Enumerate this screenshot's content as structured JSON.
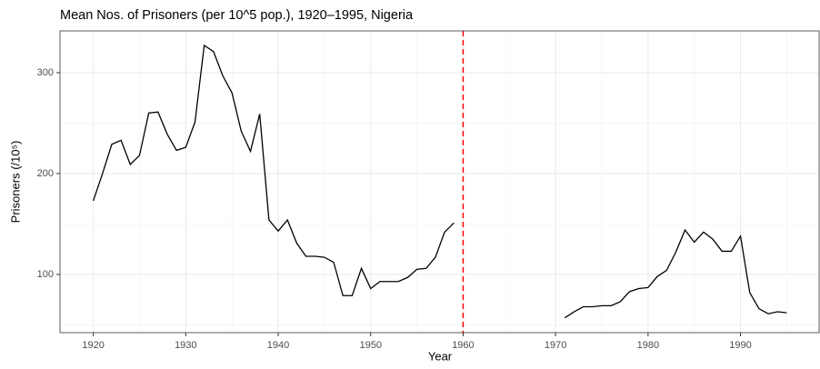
{
  "chart_data": {
    "type": "line",
    "title": "Mean Nos. of Prisoners (per 10^5 pop.), 1920–1995, Nigeria",
    "x_label": "Year",
    "y_label": "Prisoners (/10⁵)",
    "x": [
      1920,
      1921,
      1922,
      1923,
      1924,
      1925,
      1926,
      1927,
      1928,
      1929,
      1930,
      1931,
      1932,
      1933,
      1934,
      1935,
      1936,
      1937,
      1938,
      1939,
      1940,
      1941,
      1942,
      1943,
      1944,
      1945,
      1946,
      1947,
      1948,
      1949,
      1950,
      1951,
      1952,
      1953,
      1954,
      1955,
      1956,
      1957,
      1958,
      1959,
      1960,
      1961,
      1962,
      1963,
      1964,
      1965,
      1966,
      1967,
      1968,
      1969,
      1970,
      1971,
      1972,
      1973,
      1974,
      1975,
      1976,
      1977,
      1978,
      1979,
      1980,
      1981,
      1982,
      1983,
      1984,
      1985,
      1986,
      1987,
      1988,
      1989,
      1990,
      1991,
      1992,
      1993,
      1994,
      1995
    ],
    "values": [
      173,
      200,
      229,
      233,
      209,
      218,
      260,
      261,
      239,
      223,
      226,
      251,
      327,
      321,
      297,
      280,
      242,
      222,
      259,
      154,
      143,
      154,
      131,
      118,
      118,
      117,
      112,
      79,
      79,
      106,
      86,
      93,
      93,
      93,
      97,
      105,
      106,
      117,
      142,
      151,
      null,
      null,
      null,
      null,
      null,
      null,
      null,
      null,
      null,
      null,
      null,
      57,
      63,
      68,
      68,
      69,
      69,
      73,
      83,
      86,
      87,
      98,
      104,
      122,
      144,
      132,
      142,
      135,
      123,
      123,
      138,
      82,
      66,
      61,
      63,
      62
    ],
    "color": "#000000",
    "xlim": [
      1916.4,
      1998.5
    ],
    "ylim": [
      42.3,
      341.4
    ],
    "xticks": [
      1920,
      1930,
      1940,
      1950,
      1960,
      1970,
      1980,
      1990
    ],
    "yticks": [
      100,
      200,
      300
    ],
    "xminor": [
      1925,
      1935,
      1945,
      1955,
      1965,
      1975,
      1985,
      1995
    ],
    "yminor": [
      50,
      150,
      250
    ],
    "grid": true,
    "vline": {
      "x": 1960,
      "color": "#ff0000"
    }
  }
}
